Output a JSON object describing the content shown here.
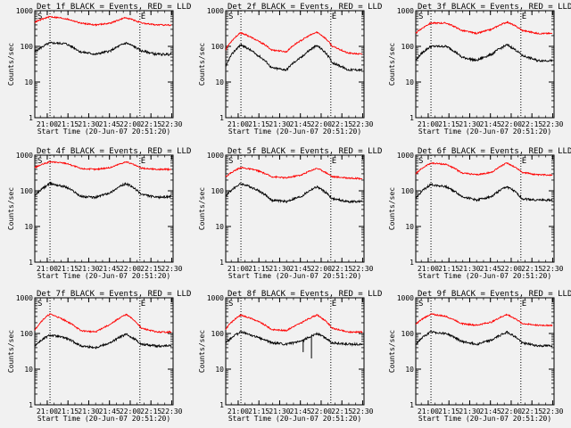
{
  "figure": {
    "background": "#f1f1f1",
    "events_color": "#000000",
    "lld_color": "#ff0000"
  },
  "chart_data": [
    {
      "type": "line",
      "title": "Det 1f BLACK = Events, RED = LLD",
      "xlabel": "Start Time (20-Jun-07 20:51:20)",
      "ylabel": "Counts/sec",
      "x_unit": "HH:MM",
      "xlim": [
        "20:51",
        "22:31"
      ],
      "ylim": [
        1,
        1000
      ],
      "yscale": "log",
      "x_ticks": [
        "21:00",
        "21:15",
        "21:30",
        "21:45",
        "22:00",
        "22:15",
        "22:30"
      ],
      "y_ticks": [
        "1",
        "10",
        "100",
        "1000"
      ],
      "markers": [
        {
          "label": "S",
          "x": "21:02"
        },
        {
          "label": "E",
          "x": "22:07"
        }
      ],
      "series": [
        {
          "role": "events",
          "x": [
            "20:51",
            "21:02",
            "21:13",
            "21:24",
            "21:35",
            "21:46",
            "21:57",
            "22:08",
            "22:19",
            "22:30"
          ],
          "values": [
            70,
            125,
            120,
            70,
            60,
            75,
            125,
            75,
            60,
            60
          ]
        },
        {
          "role": "lld",
          "x": [
            "20:51",
            "21:02",
            "21:13",
            "21:24",
            "21:35",
            "21:46",
            "21:57",
            "22:08",
            "22:19",
            "22:30"
          ],
          "values": [
            480,
            680,
            600,
            450,
            400,
            450,
            640,
            450,
            400,
            400
          ]
        }
      ]
    },
    {
      "type": "line",
      "title": "Det 2f BLACK = Events, RED = LLD",
      "xlabel": "Start Time (20-Jun-07 20:51:20)",
      "ylabel": "Counts/sec",
      "x_unit": "HH:MM",
      "xlim": [
        "20:51",
        "22:31"
      ],
      "ylim": [
        1,
        1000
      ],
      "yscale": "log",
      "x_ticks": [
        "21:00",
        "21:15",
        "21:30",
        "21:45",
        "22:00",
        "22:15",
        "22:30"
      ],
      "y_ticks": [
        "1",
        "10",
        "100",
        "1000"
      ],
      "markers": [
        {
          "label": "S",
          "x": "21:02"
        },
        {
          "label": "E",
          "x": "22:07"
        }
      ],
      "series": [
        {
          "role": "events",
          "x": [
            "20:51",
            "21:02",
            "21:13",
            "21:24",
            "21:35",
            "21:46",
            "21:57",
            "22:08",
            "22:19",
            "22:30"
          ],
          "values": [
            25,
            110,
            60,
            25,
            22,
            50,
            105,
            35,
            22,
            22
          ]
        },
        {
          "role": "lld",
          "x": [
            "20:51",
            "21:02",
            "21:13",
            "21:24",
            "21:35",
            "21:46",
            "21:57",
            "22:08",
            "22:19",
            "22:30"
          ],
          "values": [
            80,
            240,
            150,
            80,
            70,
            150,
            250,
            100,
            65,
            60
          ]
        }
      ]
    },
    {
      "type": "line",
      "title": "Det 3f BLACK = Events, RED = LLD",
      "xlabel": "Start Time (20-Jun-07 20:51:20)",
      "ylabel": "Counts/sec",
      "x_unit": "HH:MM",
      "xlim": [
        "20:51",
        "22:31"
      ],
      "ylim": [
        1,
        1000
      ],
      "yscale": "log",
      "x_ticks": [
        "21:00",
        "21:15",
        "21:30",
        "21:45",
        "22:00",
        "22:15",
        "22:30"
      ],
      "y_ticks": [
        "1",
        "10",
        "100",
        "1000"
      ],
      "markers": [
        {
          "label": "S",
          "x": "21:02"
        },
        {
          "label": "E",
          "x": "22:07"
        }
      ],
      "series": [
        {
          "role": "events",
          "x": [
            "20:51",
            "21:02",
            "21:13",
            "21:24",
            "21:35",
            "21:46",
            "21:57",
            "22:08",
            "22:19",
            "22:30"
          ],
          "values": [
            40,
            100,
            100,
            50,
            40,
            60,
            110,
            55,
            40,
            40
          ]
        },
        {
          "role": "lld",
          "x": [
            "20:51",
            "21:02",
            "21:13",
            "21:24",
            "21:35",
            "21:46",
            "21:57",
            "22:08",
            "22:19",
            "22:30"
          ],
          "values": [
            230,
            450,
            450,
            280,
            230,
            300,
            480,
            280,
            230,
            230
          ]
        }
      ]
    },
    {
      "type": "line",
      "title": "Det 4f BLACK = Events, RED = LLD",
      "xlabel": "Start Time (20-Jun-07 20:51:20)",
      "ylabel": "Counts/sec",
      "x_unit": "HH:MM",
      "xlim": [
        "20:51",
        "22:31"
      ],
      "ylim": [
        1,
        1000
      ],
      "yscale": "log",
      "x_ticks": [
        "21:00",
        "21:15",
        "21:30",
        "21:45",
        "22:00",
        "22:15",
        "22:30"
      ],
      "y_ticks": [
        "1",
        "10",
        "100",
        "1000"
      ],
      "markers": [
        {
          "label": "S",
          "x": "21:02"
        },
        {
          "label": "E",
          "x": "22:07"
        }
      ],
      "series": [
        {
          "role": "events",
          "x": [
            "20:51",
            "21:02",
            "21:13",
            "21:24",
            "21:35",
            "21:46",
            "21:57",
            "22:08",
            "22:19",
            "22:30"
          ],
          "values": [
            70,
            160,
            130,
            70,
            65,
            90,
            160,
            80,
            65,
            70
          ]
        },
        {
          "role": "lld",
          "x": [
            "20:51",
            "21:02",
            "21:13",
            "21:24",
            "21:35",
            "21:46",
            "21:57",
            "22:08",
            "22:19",
            "22:30"
          ],
          "values": [
            450,
            650,
            600,
            420,
            400,
            450,
            650,
            430,
            400,
            400
          ]
        }
      ]
    },
    {
      "type": "line",
      "title": "Det 5f BLACK = Events, RED = LLD",
      "xlabel": "Start Time (20-Jun-07 20:51:20)",
      "ylabel": "Counts/sec",
      "x_unit": "HH:MM",
      "xlim": [
        "20:51",
        "22:31"
      ],
      "ylim": [
        1,
        1000
      ],
      "yscale": "log",
      "x_ticks": [
        "21:00",
        "21:15",
        "21:30",
        "21:45",
        "22:00",
        "22:15",
        "22:30"
      ],
      "y_ticks": [
        "1",
        "10",
        "100",
        "1000"
      ],
      "markers": [
        {
          "label": "S",
          "x": "21:02"
        },
        {
          "label": "E",
          "x": "22:07"
        }
      ],
      "series": [
        {
          "role": "events",
          "x": [
            "20:51",
            "21:02",
            "21:13",
            "21:24",
            "21:35",
            "21:46",
            "21:57",
            "22:08",
            "22:19",
            "22:30"
          ],
          "values": [
            70,
            160,
            110,
            55,
            50,
            70,
            130,
            60,
            50,
            50
          ]
        },
        {
          "role": "lld",
          "x": [
            "20:51",
            "21:02",
            "21:13",
            "21:24",
            "21:35",
            "21:46",
            "21:57",
            "22:08",
            "22:19",
            "22:30"
          ],
          "values": [
            250,
            450,
            380,
            250,
            230,
            280,
            430,
            250,
            230,
            220
          ]
        }
      ]
    },
    {
      "type": "line",
      "title": "Det 6f BLACK = Events, RED = LLD",
      "xlabel": "Start Time (20-Jun-07 20:51:20)",
      "ylabel": "Counts/sec",
      "x_unit": "HH:MM",
      "xlim": [
        "20:51",
        "22:31"
      ],
      "ylim": [
        1,
        1000
      ],
      "yscale": "log",
      "x_ticks": [
        "21:00",
        "21:15",
        "21:30",
        "21:45",
        "22:00",
        "22:15",
        "22:30"
      ],
      "y_ticks": [
        "1",
        "10",
        "100",
        "1000"
      ],
      "markers": [
        {
          "label": "S",
          "x": "21:02"
        },
        {
          "label": "E",
          "x": "22:07"
        }
      ],
      "series": [
        {
          "role": "events",
          "x": [
            "20:51",
            "21:02",
            "21:13",
            "21:24",
            "21:35",
            "21:46",
            "21:57",
            "22:08",
            "22:19",
            "22:30"
          ],
          "values": [
            60,
            150,
            130,
            70,
            55,
            70,
            130,
            60,
            55,
            55
          ]
        },
        {
          "role": "lld",
          "x": [
            "20:51",
            "21:02",
            "21:13",
            "21:24",
            "21:35",
            "21:46",
            "21:57",
            "22:08",
            "22:19",
            "22:30"
          ],
          "values": [
            300,
            600,
            550,
            320,
            280,
            330,
            600,
            330,
            280,
            280
          ]
        }
      ]
    },
    {
      "type": "line",
      "title": "Det 7f BLACK = Events, RED = LLD",
      "xlabel": "Start Time (20-Jun-07 20:51:20)",
      "ylabel": "Counts/sec",
      "x_unit": "HH:MM",
      "xlim": [
        "20:51",
        "22:31"
      ],
      "ylim": [
        1,
        1000
      ],
      "yscale": "log",
      "x_ticks": [
        "21:00",
        "21:15",
        "21:30",
        "21:45",
        "22:00",
        "22:15",
        "22:30"
      ],
      "y_ticks": [
        "1",
        "10",
        "100",
        "1000"
      ],
      "markers": [
        {
          "label": "S",
          "x": "21:02"
        },
        {
          "label": "E",
          "x": "22:07"
        }
      ],
      "series": [
        {
          "role": "events",
          "x": [
            "20:51",
            "21:02",
            "21:13",
            "21:24",
            "21:35",
            "21:46",
            "21:57",
            "22:08",
            "22:19",
            "22:30"
          ],
          "values": [
            45,
            90,
            75,
            45,
            40,
            55,
            95,
            50,
            45,
            45
          ]
        },
        {
          "role": "lld",
          "x": [
            "20:51",
            "21:02",
            "21:13",
            "21:24",
            "21:35",
            "21:46",
            "21:57",
            "22:08",
            "22:19",
            "22:30"
          ],
          "values": [
            120,
            350,
            230,
            120,
            110,
            180,
            340,
            140,
            110,
            110
          ]
        }
      ]
    },
    {
      "type": "line",
      "title": "Det 8f BLACK = Events, RED = LLD",
      "xlabel": "Start Time (20-Jun-07 20:51:20)",
      "ylabel": "Counts/sec",
      "x_unit": "HH:MM",
      "xlim": [
        "20:51",
        "22:31"
      ],
      "ylim": [
        1,
        1000
      ],
      "yscale": "log",
      "x_ticks": [
        "21:00",
        "21:15",
        "21:30",
        "21:45",
        "22:00",
        "22:15",
        "22:30"
      ],
      "y_ticks": [
        "1",
        "10",
        "100",
        "1000"
      ],
      "markers": [
        {
          "label": "S",
          "x": "21:02"
        },
        {
          "label": "E",
          "x": "22:07"
        }
      ],
      "series": [
        {
          "role": "events",
          "x": [
            "20:51",
            "21:02",
            "21:13",
            "21:24",
            "21:35",
            "21:46",
            "21:57",
            "22:08",
            "22:19",
            "22:30"
          ],
          "values": [
            55,
            110,
            80,
            55,
            50,
            60,
            100,
            55,
            50,
            50
          ]
        },
        {
          "role": "lld",
          "x": [
            "20:51",
            "21:02",
            "21:13",
            "21:24",
            "21:35",
            "21:46",
            "21:57",
            "22:08",
            "22:19",
            "22:30"
          ],
          "values": [
            130,
            330,
            230,
            130,
            120,
            200,
            330,
            140,
            110,
            110
          ]
        }
      ],
      "dips": [
        {
          "x": "21:47",
          "value": 30
        },
        {
          "x": "21:53",
          "value": 20
        }
      ]
    },
    {
      "type": "line",
      "title": "Det 9f BLACK = Events, RED = LLD",
      "xlabel": "Start Time (20-Jun-07 20:51:20)",
      "ylabel": "Counts/sec",
      "x_unit": "HH:MM",
      "xlim": [
        "20:51",
        "22:31"
      ],
      "ylim": [
        1,
        1000
      ],
      "yscale": "log",
      "x_ticks": [
        "21:00",
        "21:15",
        "21:30",
        "21:45",
        "22:00",
        "22:15",
        "22:30"
      ],
      "y_ticks": [
        "1",
        "10",
        "100",
        "1000"
      ],
      "markers": [
        {
          "label": "S",
          "x": "21:02"
        },
        {
          "label": "E",
          "x": "22:07"
        }
      ],
      "series": [
        {
          "role": "events",
          "x": [
            "20:51",
            "21:02",
            "21:13",
            "21:24",
            "21:35",
            "21:46",
            "21:57",
            "22:08",
            "22:19",
            "22:30"
          ],
          "values": [
            50,
            110,
            100,
            60,
            50,
            65,
            110,
            55,
            45,
            45
          ]
        },
        {
          "role": "lld",
          "x": [
            "20:51",
            "21:02",
            "21:13",
            "21:24",
            "21:35",
            "21:46",
            "21:57",
            "22:08",
            "22:19",
            "22:30"
          ],
          "values": [
            180,
            350,
            300,
            190,
            170,
            210,
            340,
            190,
            170,
            170
          ]
        }
      ]
    }
  ]
}
